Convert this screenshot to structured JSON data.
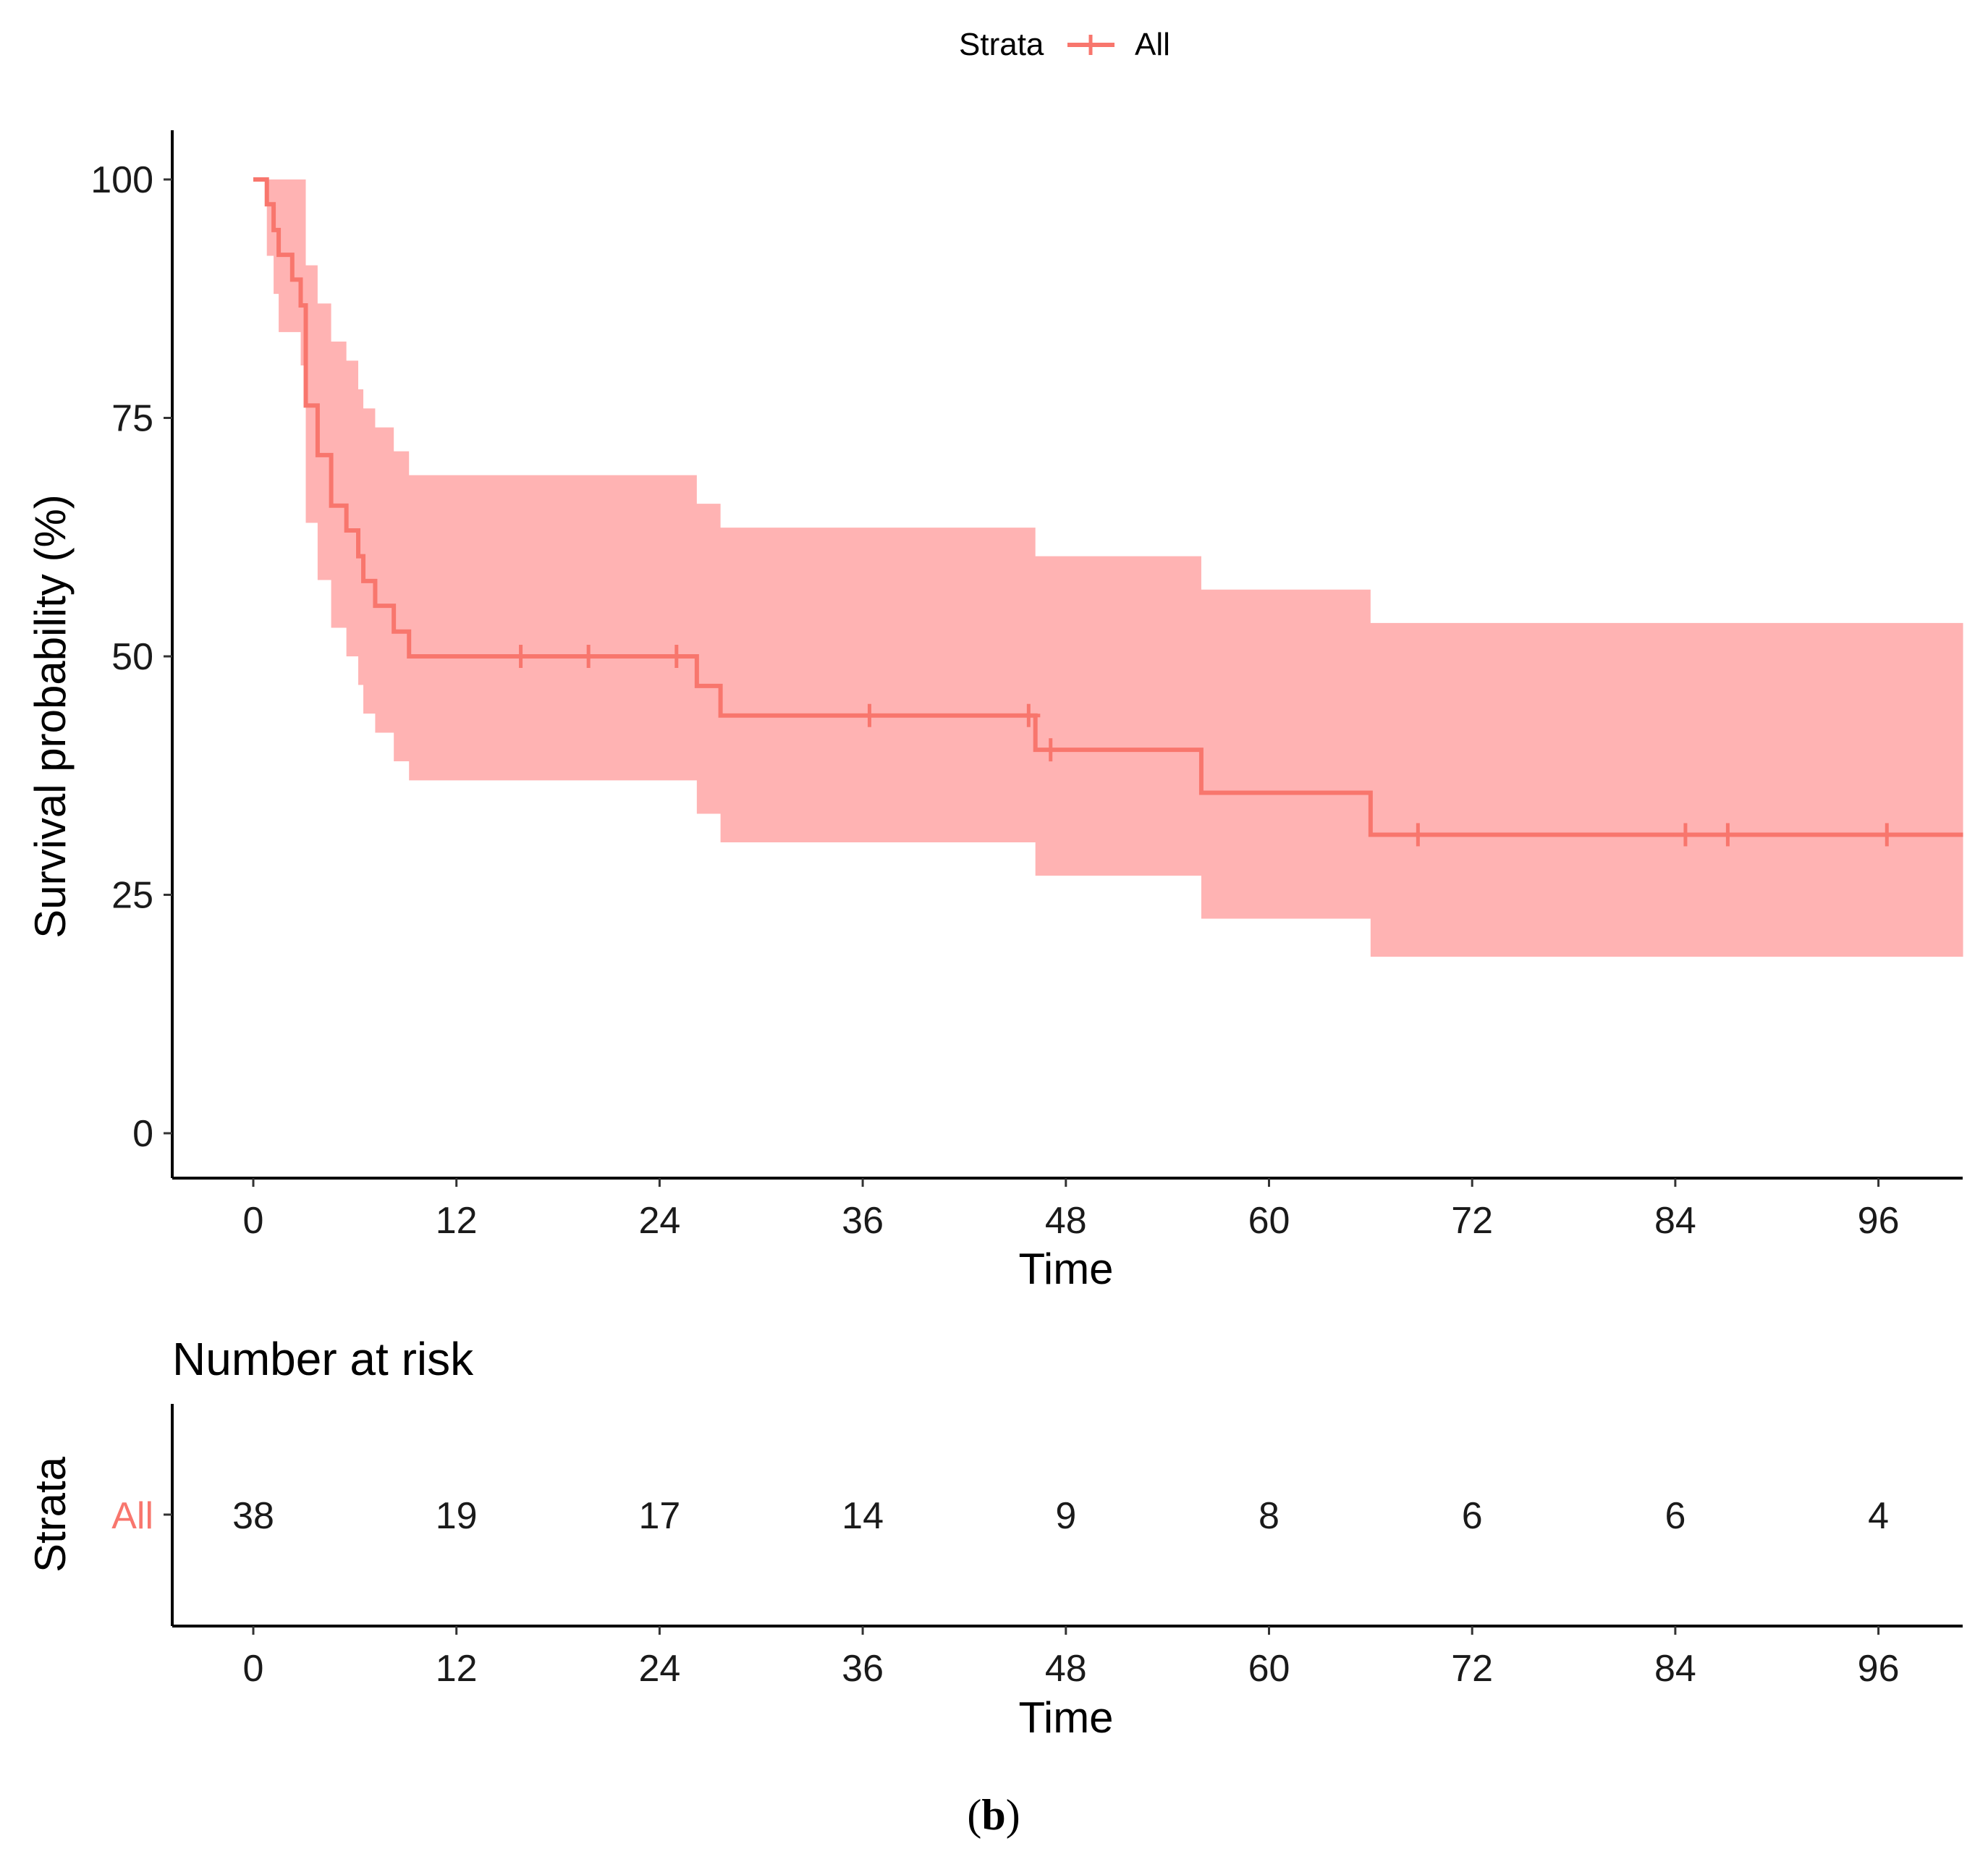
{
  "chart_data": [
    {
      "type": "line",
      "subtype": "kaplan-meier",
      "legend": {
        "title": "Strata",
        "entries": [
          "All"
        ],
        "placement": "top"
      },
      "xlabel": "Time",
      "ylabel": "Survival probability (%)",
      "xticks": [
        0,
        12,
        24,
        36,
        48,
        60,
        72,
        84,
        96
      ],
      "yticks": [
        0,
        25,
        50,
        75,
        100
      ],
      "xlim": [
        -5,
        101
      ],
      "ylim": [
        -5,
        105
      ],
      "series": [
        {
          "name": "All",
          "color": "#F8766D",
          "band_color": "#FFB3B3",
          "step_x": [
            0,
            0.8,
            1.2,
            1.5,
            2.3,
            2.8,
            3.1,
            3.8,
            4.6,
            5.5,
            6.2,
            6.5,
            7.2,
            8.3,
            9.2,
            26.2,
            27.6,
            46.2,
            56.0,
            66.0,
            101
          ],
          "step_y": [
            100,
            97.4,
            94.7,
            92.1,
            89.5,
            86.8,
            76.3,
            71.1,
            65.8,
            63.2,
            60.5,
            57.9,
            55.3,
            52.6,
            50.0,
            46.9,
            43.8,
            40.2,
            35.7,
            31.3,
            31.3
          ],
          "band_x": [
            0.8,
            1.2,
            1.5,
            2.3,
            2.8,
            3.1,
            3.8,
            4.6,
            5.5,
            6.2,
            6.5,
            7.2,
            8.3,
            9.2,
            26.2,
            27.6,
            46.2,
            56.0,
            66.0,
            101
          ],
          "band_lower": [
            92.0,
            88.0,
            84.0,
            84.0,
            80.5,
            64.0,
            58.0,
            53.0,
            50.0,
            47.0,
            44.0,
            42.0,
            39.0,
            37.0,
            33.5,
            30.5,
            27.0,
            22.5,
            18.5
          ],
          "band_upper": [
            100,
            100,
            100,
            100,
            100,
            91.0,
            87.0,
            83.0,
            81.0,
            78.0,
            76.0,
            74.0,
            71.5,
            69.0,
            66.0,
            63.5,
            60.5,
            57.0,
            53.5
          ],
          "censor_x": [
            15.8,
            19.8,
            25.0,
            36.4,
            45.8,
            47.1,
            68.8,
            84.6,
            87.1,
            96.5
          ],
          "censor_y": [
            50.0,
            50.0,
            50.0,
            43.8,
            43.8,
            40.2,
            31.3,
            31.3,
            31.3,
            31.3
          ]
        }
      ]
    },
    {
      "type": "table",
      "title": "Number at risk",
      "ylabel": "Strata",
      "xlabel": "Time",
      "row_label": "All",
      "row_color": "#F8766D",
      "x": [
        0,
        12,
        24,
        36,
        48,
        60,
        72,
        84,
        96
      ],
      "values": [
        38,
        19,
        17,
        14,
        9,
        8,
        6,
        6,
        4
      ],
      "xticks": [
        0,
        12,
        24,
        36,
        48,
        60,
        72,
        84,
        96
      ]
    }
  ],
  "caption": {
    "open": "(",
    "letter": "b",
    "close": ")"
  }
}
